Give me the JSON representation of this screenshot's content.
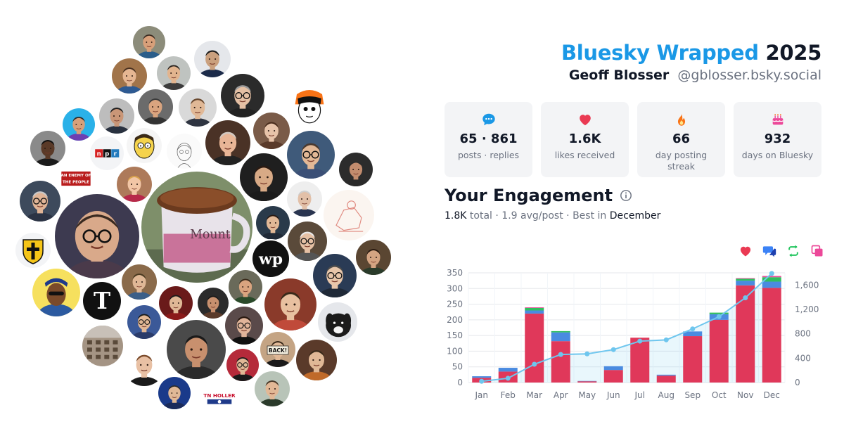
{
  "header": {
    "title_brand": "Bluesky Wrapped",
    "title_year": "2025",
    "user_name": "Geoff Blosser",
    "user_handle": "@gblosser.bsky.social"
  },
  "stats": [
    {
      "icon": "chat-bubble-icon",
      "value": "65 · 861",
      "label": "posts · replies",
      "color": "#1a98e6"
    },
    {
      "icon": "heart-icon",
      "value": "1.6K",
      "label": "likes received",
      "color": "#ea3a53"
    },
    {
      "icon": "flame-icon",
      "value": "66",
      "label": "day posting streak",
      "color": "#f97316"
    },
    {
      "icon": "cake-icon",
      "value": "932",
      "label": "days on Bluesky",
      "color": "#ec4899"
    }
  ],
  "engagement": {
    "title": "Your Engagement",
    "total_value": "1.8K",
    "total_label": "total",
    "avg_text": "1.9 avg/post",
    "best_label": "Best in",
    "best_month": "December"
  },
  "legend": [
    {
      "icon": "heart-icon",
      "color": "#ea3a53"
    },
    {
      "icon": "reply-icon",
      "color": "#3b82f6"
    },
    {
      "icon": "repost-icon",
      "color": "#22c55e"
    },
    {
      "icon": "quote-icon",
      "color": "#ec4899"
    }
  ],
  "colors": {
    "brand": "#1a98e6",
    "likes": "#e0385a",
    "replies": "#4a8be0",
    "reposts": "#2fbe5e",
    "quotes": "#e84d9a",
    "line": "#6ec6ee"
  },
  "chart_data": {
    "type": "bar",
    "categories": [
      "Jan",
      "Feb",
      "Mar",
      "Apr",
      "May",
      "Jun",
      "Jul",
      "Aug",
      "Sep",
      "Oct",
      "Nov",
      "Dec"
    ],
    "series": [
      {
        "values": [
          15,
          35,
          220,
          132,
          4,
          40,
          143,
          22,
          148,
          200,
          310,
          302
        ]
      },
      {
        "values": [
          5,
          12,
          10,
          28,
          1,
          12,
          0,
          3,
          15,
          18,
          15,
          20
        ]
      },
      {
        "values": [
          0,
          0,
          8,
          4,
          0,
          0,
          0,
          0,
          0,
          5,
          6,
          14
        ]
      },
      {
        "values": [
          0,
          0,
          2,
          0,
          0,
          0,
          0,
          0,
          0,
          0,
          2,
          4
        ]
      }
    ],
    "line_values": [
      20,
      70,
      300,
      460,
      470,
      540,
      680,
      700,
      880,
      1080,
      1390,
      1790
    ],
    "ylim": [
      0,
      350
    ],
    "yticks": [
      0,
      50,
      100,
      150,
      200,
      250,
      300,
      350
    ],
    "y2lim": [
      0,
      1800
    ],
    "y2ticks": [
      "0",
      "400",
      "800",
      "1,200",
      "1,600"
    ],
    "y2tick_values": [
      0,
      400,
      800,
      1200,
      1600
    ],
    "grid": true
  },
  "avatars": {
    "labels": {
      "npr": "npr",
      "enemy": "AN ENEMY OF THE PEOPLE",
      "mug": "Mount",
      "wp": "wp",
      "tn": "TN HOLLER",
      "back": "BACK!"
    }
  }
}
